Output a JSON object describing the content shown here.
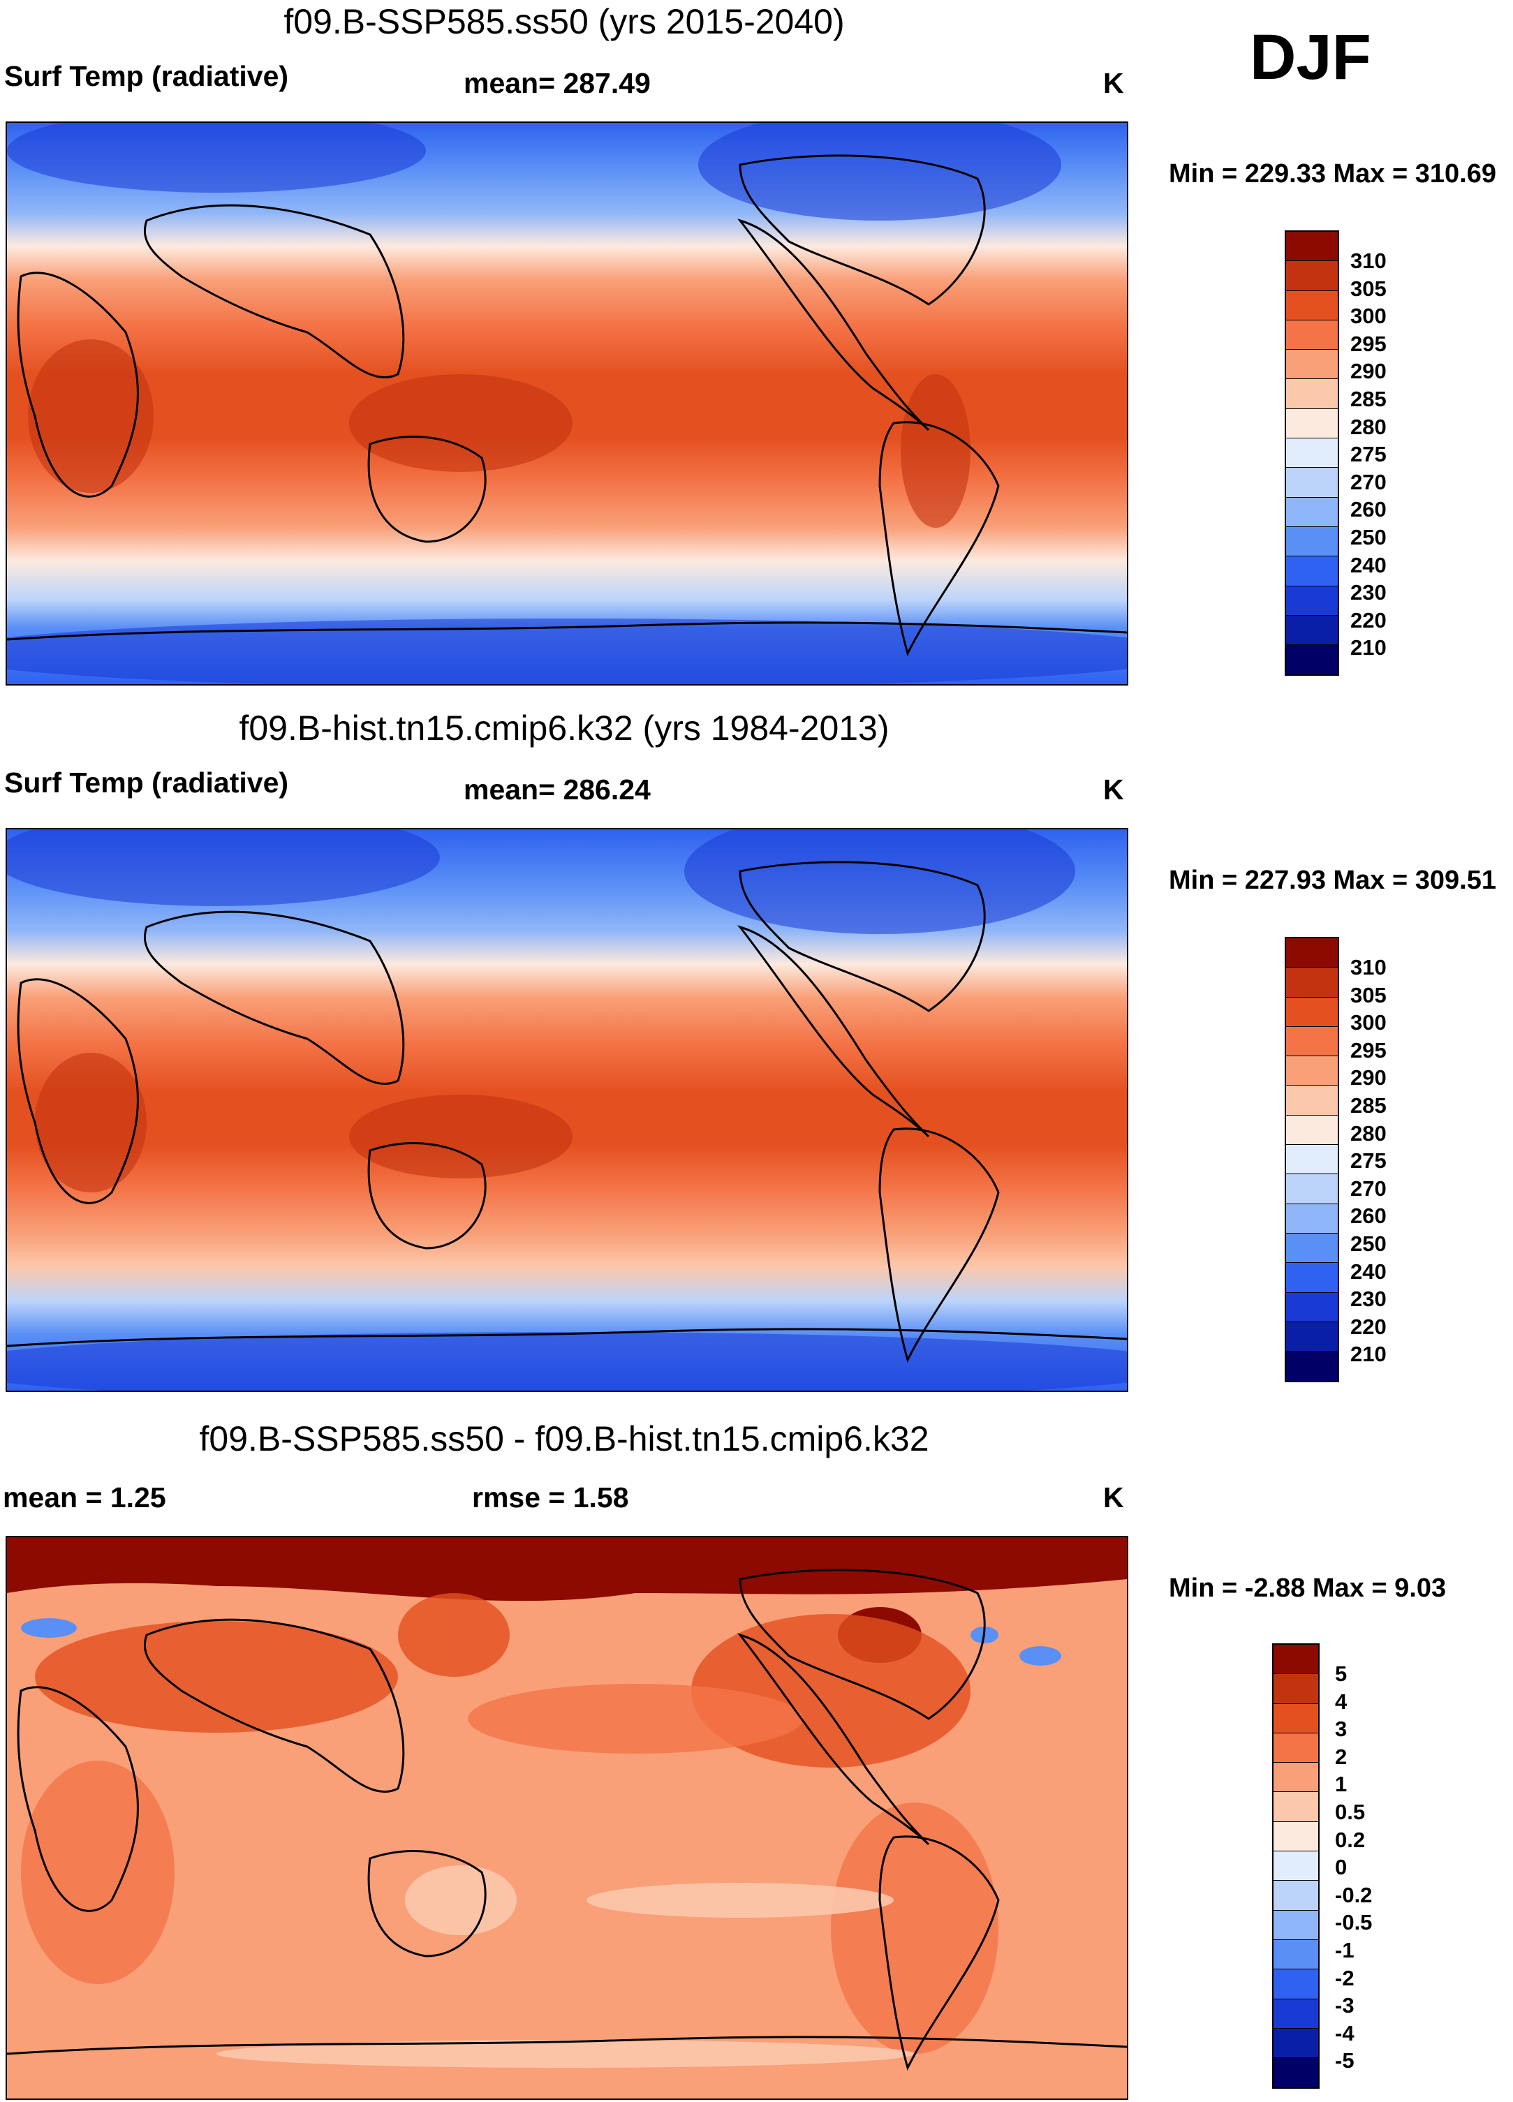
{
  "season": "DJF",
  "colors": {
    "abs": [
      "#000066",
      "#0a1fa8",
      "#1a3ad6",
      "#2f62f0",
      "#5a8ff6",
      "#8fb6f8",
      "#bcd4fa",
      "#e1ecfc",
      "#fdeadf",
      "#fcc8ac",
      "#f9a078",
      "#f47448",
      "#e4501f",
      "#c43310",
      "#8c0a00"
    ],
    "diff": [
      "#000066",
      "#0a1fa8",
      "#1a3ad6",
      "#2f62f0",
      "#5a8ff6",
      "#8fb6f8",
      "#bcd4fa",
      "#e1ecfc",
      "#fdeadf",
      "#fcc8ac",
      "#f9a078",
      "#f47448",
      "#e4501f",
      "#c43310",
      "#8c0a00"
    ]
  },
  "panels": [
    {
      "title": "f09.B-SSP585.ss50 (yrs 2015-2040)",
      "left_label": "Surf Temp (radiative)",
      "center_label": "mean= 287.49",
      "units": "K",
      "minmax": "Min = 229.33 Max = 310.69",
      "colorbar_labels": [
        "310",
        "305",
        "300",
        "295",
        "290",
        "285",
        "280",
        "275",
        "270",
        "260",
        "250",
        "240",
        "230",
        "220",
        "210"
      ]
    },
    {
      "title": "f09.B-hist.tn15.cmip6.k32 (yrs 1984-2013)",
      "left_label": "Surf Temp (radiative)",
      "center_label": "mean= 286.24",
      "units": "K",
      "minmax": "Min = 227.93 Max = 309.51",
      "colorbar_labels": [
        "310",
        "305",
        "300",
        "295",
        "290",
        "285",
        "280",
        "275",
        "270",
        "260",
        "250",
        "240",
        "230",
        "220",
        "210"
      ]
    },
    {
      "title": "f09.B-SSP585.ss50 - f09.B-hist.tn15.cmip6.k32",
      "left_label": "mean =   1.25",
      "center_label": "rmse =   1.58",
      "units": "K",
      "minmax": "Min =  -2.88 Max =   9.03",
      "colorbar_labels": [
        "5",
        "4",
        "3",
        "2",
        "1",
        "0.5",
        "0.2",
        "0",
        "-0.2",
        "-0.5",
        "-1",
        "-2",
        "-3",
        "-4",
        "-5"
      ]
    }
  ]
}
